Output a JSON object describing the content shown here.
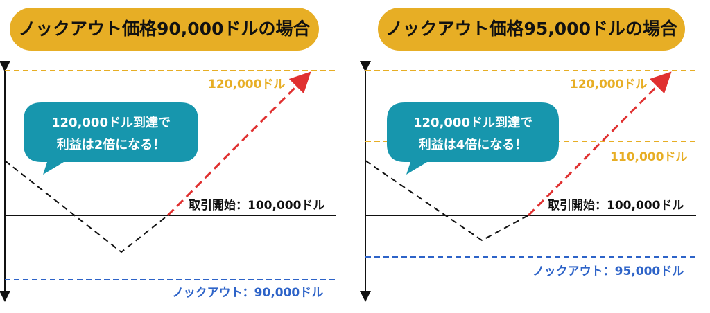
{
  "colors": {
    "title_bg": "#e7ae25",
    "target_line": "#e7ae25",
    "knockout_line": "#2d63c8",
    "bubble": "#1796ad",
    "up_arrow": "#e03030",
    "path": "#111111"
  },
  "panels": [
    {
      "title": "ノックアウト価格90,000ドルの場合",
      "target_label": "120,000ドル",
      "start_label": "取引開始：100,000ドル",
      "knockout_label": "ノックアウト：90,000ドル",
      "bubble_line1": "120,000ドル到達で",
      "bubble_line2": "利益は2倍になる！"
    },
    {
      "title": "ノックアウト価格95,000ドルの場合",
      "target_label": "120,000ドル",
      "mid_label": "110,000ドル",
      "start_label": "取引開始：100,000ドル",
      "knockout_label": "ノックアウト：95,000ドル",
      "bubble_line1": "120,000ドル到達で",
      "bubble_line2": "利益は4倍になる！"
    }
  ]
}
